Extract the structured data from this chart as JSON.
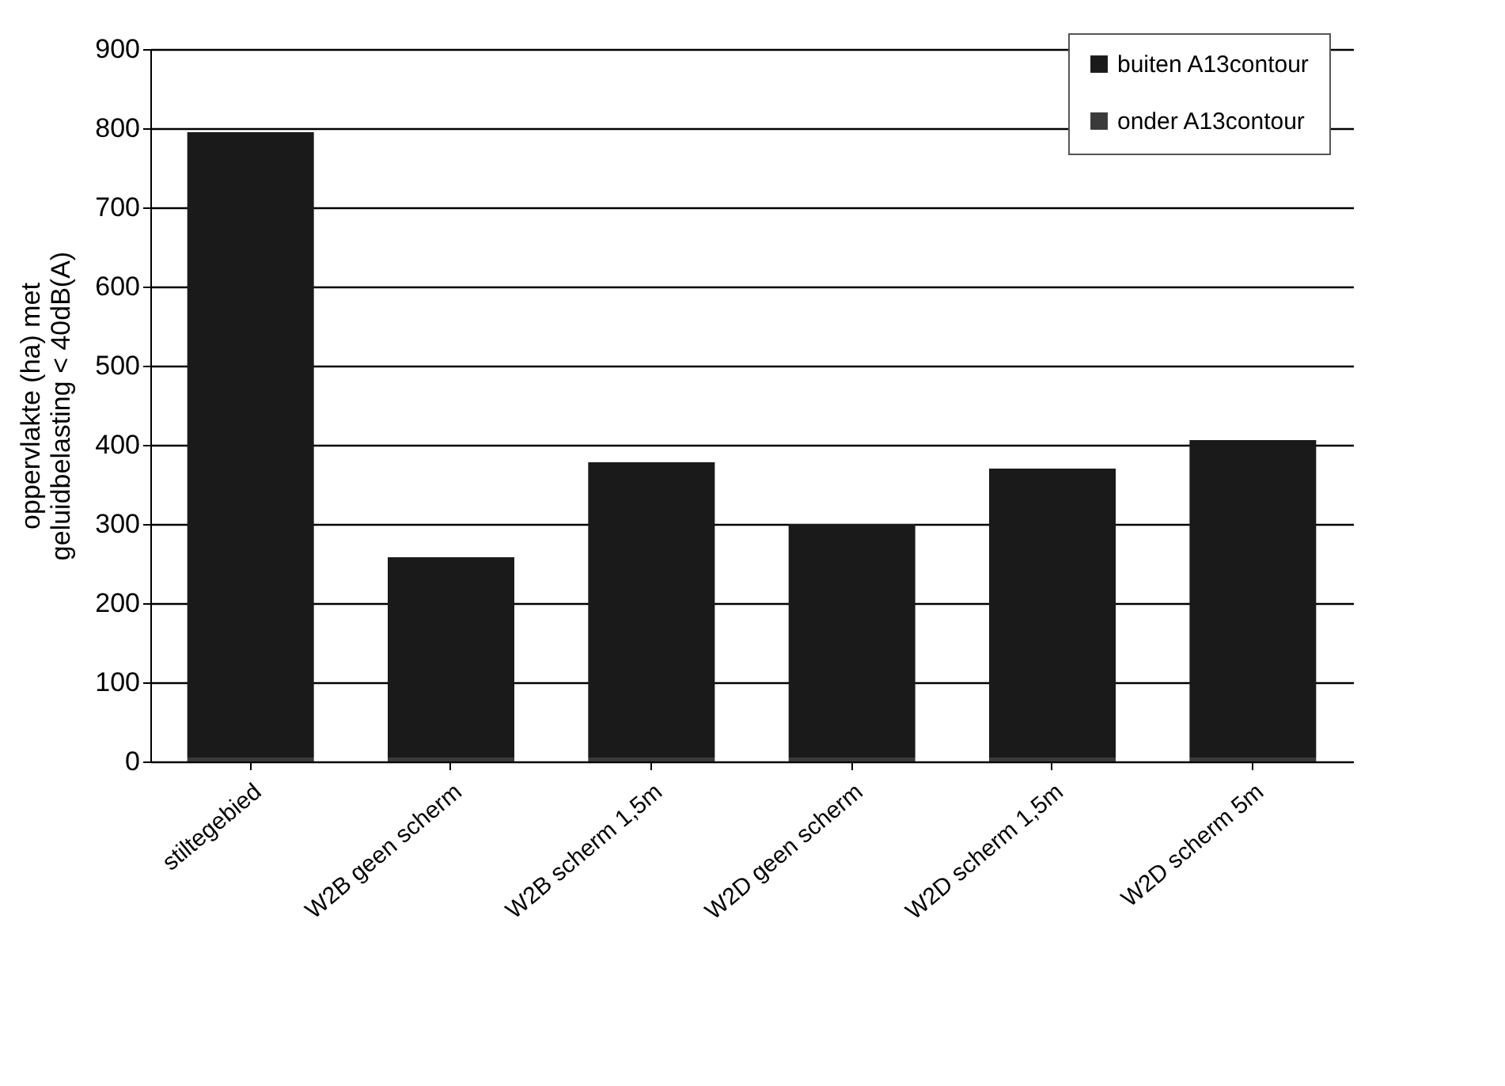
{
  "chart_data": {
    "type": "bar",
    "stacked": true,
    "ylabel": "oppervlakte (ha) met\ngeluidbelasting < 40dB(A)",
    "categories": [
      "stiltegebied",
      "W2B geen scherm",
      "W2B scherm 1,5m",
      "W2D geen scherm",
      "W2D scherm 1,5m",
      "W2D scherm 5m"
    ],
    "series": [
      {
        "name": "onder A13contour",
        "color": "#3a3a3a",
        "values": [
          5,
          5,
          5,
          5,
          5,
          5
        ]
      },
      {
        "name": "buiten A13contour",
        "color": "#1a1a1a",
        "values": [
          790,
          253,
          373,
          295,
          365,
          401
        ]
      }
    ],
    "ylim": [
      0,
      900
    ],
    "yticks": [
      0,
      100,
      200,
      300,
      400,
      500,
      600,
      700,
      800,
      900
    ],
    "grid": "y",
    "legend": "top right"
  }
}
